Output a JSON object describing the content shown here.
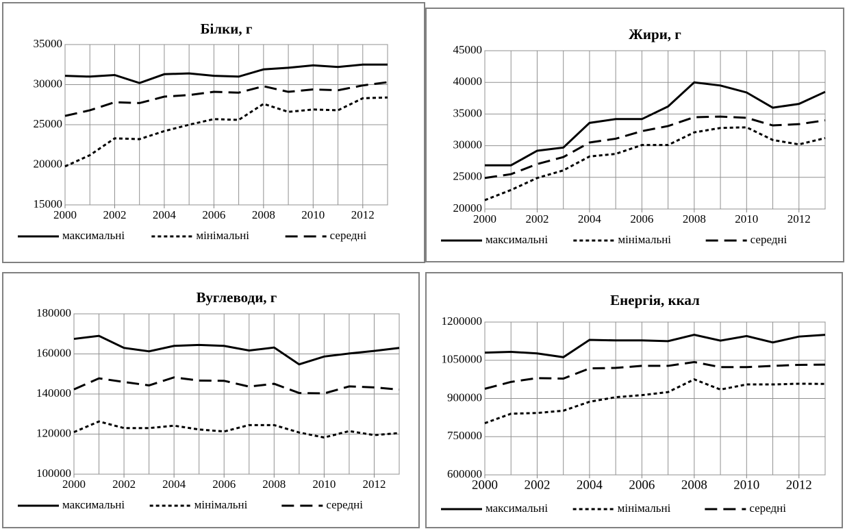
{
  "chart_data": [
    {
      "type": "line",
      "title": "Білки, г",
      "x": [
        2000,
        2001,
        2002,
        2003,
        2004,
        2005,
        2006,
        2007,
        2008,
        2009,
        2010,
        2011,
        2012,
        2013
      ],
      "xlim": [
        2000,
        2013
      ],
      "xticks": [
        2000,
        2002,
        2004,
        2006,
        2008,
        2010,
        2012
      ],
      "ylim": [
        15000,
        35000
      ],
      "yticks": [
        15000,
        20000,
        25000,
        30000,
        35000
      ],
      "grid": true,
      "legend": "bottom",
      "series": [
        {
          "name": "максимальні",
          "color": "#000000",
          "dash": "solid",
          "values": [
            31100,
            31000,
            31200,
            30200,
            31300,
            31400,
            31100,
            31000,
            31900,
            32100,
            32400,
            32200,
            32500,
            32500
          ]
        },
        {
          "name": "мінімальні",
          "color": "#000000",
          "dash": "dotted",
          "values": [
            19800,
            21200,
            23300,
            23200,
            24200,
            25000,
            25700,
            25600,
            27600,
            26600,
            26900,
            26800,
            28300,
            28400
          ]
        },
        {
          "name": "середні",
          "color": "#000000",
          "dash": "dashed",
          "values": [
            26100,
            26800,
            27800,
            27700,
            28500,
            28700,
            29100,
            29000,
            29800,
            29100,
            29400,
            29300,
            29900,
            30300
          ]
        }
      ]
    },
    {
      "type": "line",
      "title": "Жири, г",
      "x": [
        2000,
        2001,
        2002,
        2003,
        2004,
        2005,
        2006,
        2007,
        2008,
        2009,
        2010,
        2011,
        2012,
        2013
      ],
      "xlim": [
        2000,
        2013
      ],
      "xticks": [
        2000,
        2002,
        2004,
        2006,
        2008,
        2010,
        2012
      ],
      "ylim": [
        20000,
        45000
      ],
      "yticks": [
        20000,
        25000,
        30000,
        35000,
        40000,
        45000
      ],
      "grid": true,
      "legend": "bottom",
      "series": [
        {
          "name": "максимальні",
          "color": "#000000",
          "dash": "solid",
          "values": [
            26900,
            26900,
            29200,
            29700,
            33600,
            34200,
            34200,
            36200,
            40000,
            39500,
            38400,
            36000,
            36600,
            38500
          ]
        },
        {
          "name": "мінімальні",
          "color": "#000000",
          "dash": "dotted",
          "values": [
            21400,
            23000,
            24900,
            26100,
            28300,
            28700,
            30100,
            30100,
            32100,
            32800,
            32900,
            30900,
            30200,
            31200
          ]
        },
        {
          "name": "середні",
          "color": "#000000",
          "dash": "dashed",
          "values": [
            24900,
            25500,
            27100,
            28200,
            30500,
            31100,
            32300,
            33100,
            34500,
            34600,
            34400,
            33200,
            33400,
            34000
          ]
        }
      ]
    },
    {
      "type": "line",
      "title": "Вуглеводи, г",
      "x": [
        2000,
        2001,
        2002,
        2003,
        2004,
        2005,
        2006,
        2007,
        2008,
        2009,
        2010,
        2011,
        2012,
        2013
      ],
      "xlim": [
        2000,
        2013
      ],
      "xticks": [
        2000,
        2002,
        2004,
        2006,
        2008,
        2010,
        2012
      ],
      "ylim": [
        100000,
        180000
      ],
      "yticks": [
        100000,
        120000,
        140000,
        160000,
        180000
      ],
      "grid": true,
      "legend": "bottom",
      "series": [
        {
          "name": "максимальні",
          "color": "#000000",
          "dash": "solid",
          "values": [
            167500,
            169000,
            163000,
            161300,
            164000,
            164500,
            164000,
            161700,
            163200,
            154800,
            158700,
            160200,
            161500,
            163000
          ]
        },
        {
          "name": "мінімальні",
          "color": "#000000",
          "dash": "dotted",
          "values": [
            121000,
            126300,
            123000,
            123000,
            124200,
            122300,
            121300,
            124500,
            124500,
            120800,
            118300,
            121500,
            119500,
            120500
          ]
        },
        {
          "name": "середні",
          "color": "#000000",
          "dash": "dashed",
          "values": [
            142300,
            147800,
            146000,
            144300,
            148300,
            146700,
            146600,
            143700,
            145100,
            140500,
            140300,
            143800,
            143300,
            142200
          ]
        }
      ]
    },
    {
      "type": "line",
      "title": "Енергія, ккал",
      "x": [
        2000,
        2001,
        2002,
        2003,
        2004,
        2005,
        2006,
        2007,
        2008,
        2009,
        2010,
        2011,
        2012,
        2013
      ],
      "xlim": [
        2000,
        2013
      ],
      "xticks": [
        2000,
        2002,
        2004,
        2006,
        2008,
        2010,
        2012
      ],
      "ylim": [
        600000,
        1200000
      ],
      "yticks": [
        600000,
        750000,
        900000,
        1050000,
        1200000
      ],
      "grid": true,
      "legend": "bottom",
      "series": [
        {
          "name": "максимальні",
          "color": "#000000",
          "dash": "solid",
          "values": [
            1080000,
            1083000,
            1077000,
            1062000,
            1130000,
            1128000,
            1128000,
            1125000,
            1150000,
            1127000,
            1145000,
            1120000,
            1143000,
            1150000
          ]
        },
        {
          "name": "мінімальні",
          "color": "#000000",
          "dash": "dotted",
          "values": [
            803000,
            840000,
            843000,
            852000,
            887000,
            905000,
            913000,
            925000,
            975000,
            935000,
            955000,
            955000,
            958000,
            957000
          ]
        },
        {
          "name": "середні",
          "color": "#000000",
          "dash": "dashed",
          "values": [
            938000,
            965000,
            980000,
            978000,
            1018000,
            1020000,
            1028000,
            1028000,
            1043000,
            1023000,
            1023000,
            1028000,
            1032000,
            1033000
          ]
        }
      ]
    }
  ]
}
